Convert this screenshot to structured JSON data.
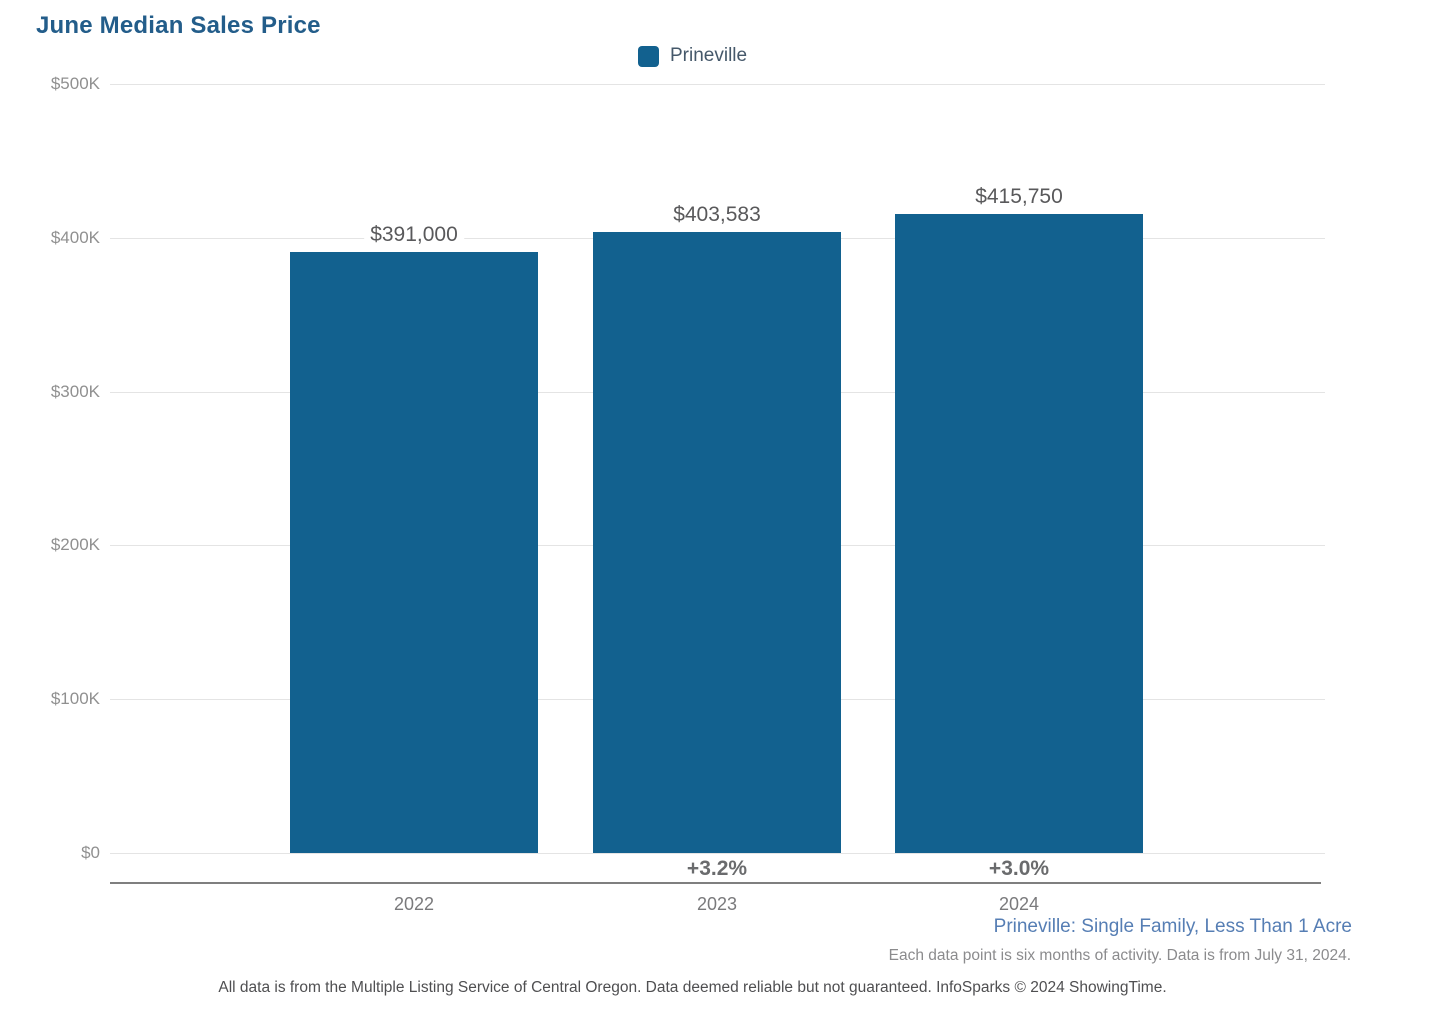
{
  "title": "June Median Sales Price",
  "legend": {
    "label": "Prineville",
    "swatch_color": "#12618F"
  },
  "chart_data": {
    "type": "bar",
    "title": "June Median Sales Price",
    "series_name": "Prineville",
    "categories": [
      "2022",
      "2023",
      "2024"
    ],
    "values": [
      391000,
      403583,
      415750
    ],
    "value_labels": [
      "$391,000",
      "$403,583",
      "$415,750"
    ],
    "change_labels": [
      "",
      "+3.2%",
      "+3.0%"
    ],
    "ylim": [
      0,
      500000
    ],
    "yticks": [
      0,
      100000,
      200000,
      300000,
      400000,
      500000
    ],
    "ytick_labels": [
      "$0",
      "$100K",
      "$200K",
      "$300K",
      "$400K",
      "$500K"
    ],
    "grid": true,
    "legend_position": "top",
    "bar_color": "#12618F"
  },
  "footer": {
    "series_description": "Prineville: Single Family, Less Than 1 Acre",
    "data_note": "Each data point is six months of activity. Data is from July 31, 2024.",
    "disclaimer": "All data is from the Multiple Listing Service of Central Oregon. Data deemed reliable but not guaranteed. InfoSparks © 2024 ShowingTime."
  },
  "colors": {
    "title": "#235D8A",
    "bar": "#12618F",
    "series_description": "#567EB4",
    "gridline": "#E4E4E4",
    "axis_line": "#7F7F7F"
  }
}
